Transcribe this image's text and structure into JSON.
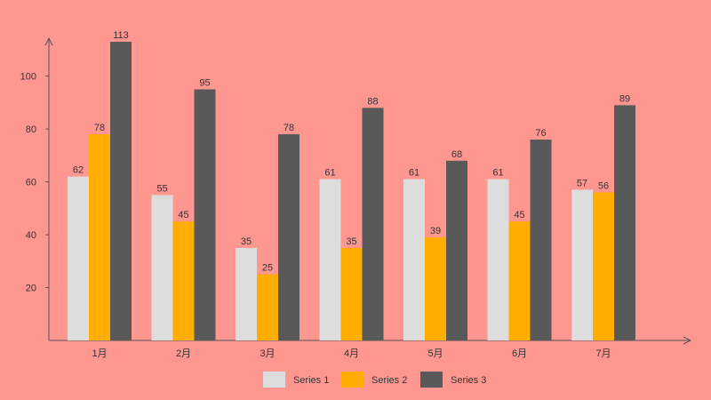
{
  "colors": {
    "background": "#ff9791",
    "axis": "#555555",
    "text": "#333333"
  },
  "chart_data": {
    "type": "bar",
    "title": "",
    "xlabel": "",
    "ylabel": "",
    "categories": [
      "1月",
      "2月",
      "3月",
      "4月",
      "5月",
      "6月",
      "7月"
    ],
    "ylim": [
      0,
      113
    ],
    "yticks": [
      20,
      40,
      60,
      80,
      100
    ],
    "grid": false,
    "legend_position": "bottom",
    "series": [
      {
        "name": "Series 1",
        "color": "#dddddd",
        "values": [
          62,
          55,
          35,
          61,
          61,
          61,
          57
        ]
      },
      {
        "name": "Series 2",
        "color": "#ffad00",
        "values": [
          78,
          45,
          25,
          35,
          39,
          45,
          56
        ]
      },
      {
        "name": "Series 3",
        "color": "#595959",
        "values": [
          113,
          95,
          78,
          88,
          68,
          76,
          89
        ]
      }
    ]
  }
}
